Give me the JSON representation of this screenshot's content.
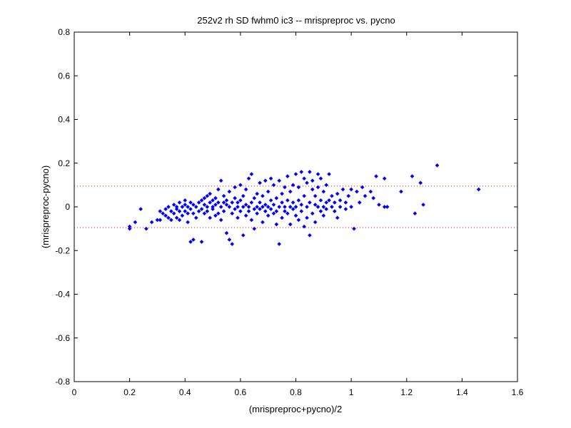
{
  "chart_data": {
    "type": "scatter",
    "title": "252v2 rh SD fwhm0 ic3 -- mrispreproc vs. pycno",
    "xlabel": "(mrispreproc+pycno)/2",
    "ylabel": "(mrispreproc-pycno)",
    "xlim": [
      0,
      1.6
    ],
    "ylim": [
      -0.8,
      0.8
    ],
    "xticks": [
      "0",
      "0.2",
      "0.4",
      "0.6",
      "0.8",
      "1",
      "1.2",
      "1.4",
      "1.6"
    ],
    "xtick_values": [
      0,
      0.2,
      0.4,
      0.6,
      0.8,
      1.0,
      1.2,
      1.4,
      1.6
    ],
    "yticks": [
      "-0.8",
      "-0.6",
      "-0.4",
      "-0.2",
      "0",
      "0.2",
      "0.4",
      "0.6",
      "0.8"
    ],
    "ytick_values": [
      -0.8,
      -0.6,
      -0.4,
      -0.2,
      0,
      0.2,
      0.4,
      0.6,
      0.8
    ],
    "grid": false,
    "marker_color": "#0000ff",
    "reference_line_color": "#ff0000",
    "reference_lines": [
      0.095,
      -0.095
    ],
    "points": [
      [
        0.2,
        -0.09
      ],
      [
        0.2,
        -0.1
      ],
      [
        0.22,
        -0.07
      ],
      [
        0.24,
        -0.01
      ],
      [
        0.26,
        -0.1
      ],
      [
        0.28,
        -0.07
      ],
      [
        0.3,
        -0.06
      ],
      [
        0.31,
        -0.02
      ],
      [
        0.31,
        -0.06
      ],
      [
        0.32,
        -0.03
      ],
      [
        0.33,
        -0.04
      ],
      [
        0.33,
        -0.01
      ],
      [
        0.34,
        0.0
      ],
      [
        0.34,
        -0.05
      ],
      [
        0.35,
        -0.02
      ],
      [
        0.35,
        -0.06
      ],
      [
        0.36,
        0.01
      ],
      [
        0.36,
        -0.03
      ],
      [
        0.37,
        -0.01
      ],
      [
        0.37,
        -0.05
      ],
      [
        0.37,
        0.0
      ],
      [
        0.38,
        0.02
      ],
      [
        0.38,
        -0.02
      ],
      [
        0.38,
        -0.06
      ],
      [
        0.39,
        0.0
      ],
      [
        0.39,
        -0.04
      ],
      [
        0.4,
        0.01
      ],
      [
        0.4,
        -0.02
      ],
      [
        0.4,
        0.03
      ],
      [
        0.41,
        -0.03
      ],
      [
        0.41,
        0.0
      ],
      [
        0.41,
        -0.07
      ],
      [
        0.42,
        0.02
      ],
      [
        0.42,
        -0.01
      ],
      [
        0.42,
        -0.16
      ],
      [
        0.43,
        -0.15
      ],
      [
        0.43,
        -0.03
      ],
      [
        0.43,
        0.01
      ],
      [
        0.44,
        0.0
      ],
      [
        0.44,
        -0.05
      ],
      [
        0.45,
        0.02
      ],
      [
        0.45,
        -0.02
      ],
      [
        0.46,
        -0.16
      ],
      [
        0.46,
        0.03
      ],
      [
        0.46,
        -0.01
      ],
      [
        0.47,
        0.01
      ],
      [
        0.47,
        0.04
      ],
      [
        0.47,
        -0.03
      ],
      [
        0.48,
        0.0
      ],
      [
        0.48,
        0.05
      ],
      [
        0.48,
        -0.02
      ],
      [
        0.49,
        0.02
      ],
      [
        0.49,
        -0.05
      ],
      [
        0.49,
        0.06
      ],
      [
        0.5,
        0.0
      ],
      [
        0.5,
        0.03
      ],
      [
        0.5,
        -0.01
      ],
      [
        0.51,
        0.04
      ],
      [
        0.51,
        -0.04
      ],
      [
        0.51,
        0.01
      ],
      [
        0.52,
        0.02
      ],
      [
        0.52,
        0.08
      ],
      [
        0.52,
        -0.03
      ],
      [
        0.53,
        0.12
      ],
      [
        0.53,
        0.0
      ],
      [
        0.53,
        -0.06
      ],
      [
        0.54,
        0.05
      ],
      [
        0.54,
        0.02
      ],
      [
        0.54,
        -0.02
      ],
      [
        0.55,
        0.01
      ],
      [
        0.55,
        -0.12
      ],
      [
        0.55,
        0.03
      ],
      [
        0.56,
        0.0
      ],
      [
        0.56,
        -0.15
      ],
      [
        0.56,
        0.07
      ],
      [
        0.57,
        -0.17
      ],
      [
        0.57,
        0.02
      ],
      [
        0.57,
        -0.03
      ],
      [
        0.58,
        0.04
      ],
      [
        0.58,
        -0.01
      ],
      [
        0.58,
        0.09
      ],
      [
        0.59,
        0.0
      ],
      [
        0.59,
        -0.05
      ],
      [
        0.59,
        0.02
      ],
      [
        0.6,
        0.03
      ],
      [
        0.6,
        -0.02
      ],
      [
        0.6,
        0.1
      ],
      [
        0.61,
        0.0
      ],
      [
        0.61,
        -0.13
      ],
      [
        0.61,
        0.05
      ],
      [
        0.62,
        0.01
      ],
      [
        0.62,
        -0.04
      ],
      [
        0.62,
        0.08
      ],
      [
        0.63,
        0.0
      ],
      [
        0.63,
        -0.02
      ],
      [
        0.63,
        0.13
      ],
      [
        0.64,
        0.02
      ],
      [
        0.64,
        -0.06
      ],
      [
        0.64,
        0.15
      ],
      [
        0.65,
        -0.01
      ],
      [
        0.65,
        0.04
      ],
      [
        0.65,
        -0.1
      ],
      [
        0.66,
        0.0
      ],
      [
        0.66,
        0.06
      ],
      [
        0.66,
        -0.03
      ],
      [
        0.67,
        0.02
      ],
      [
        0.67,
        0.11
      ],
      [
        0.67,
        -0.01
      ],
      [
        0.68,
        0.0
      ],
      [
        0.68,
        0.05
      ],
      [
        0.68,
        -0.07
      ],
      [
        0.69,
        -0.02
      ],
      [
        0.69,
        0.01
      ],
      [
        0.69,
        0.12
      ],
      [
        0.7,
        0.0
      ],
      [
        0.7,
        -0.04
      ],
      [
        0.7,
        0.07
      ],
      [
        0.71,
        0.13
      ],
      [
        0.71,
        -0.01
      ],
      [
        0.71,
        0.03
      ],
      [
        0.72,
        -0.03
      ],
      [
        0.72,
        0.01
      ],
      [
        0.72,
        0.1
      ],
      [
        0.73,
        -0.02
      ],
      [
        0.73,
        0.04
      ],
      [
        0.73,
        -0.08
      ],
      [
        0.74,
        0.0
      ],
      [
        0.74,
        0.12
      ],
      [
        0.74,
        -0.17
      ],
      [
        0.75,
        0.02
      ],
      [
        0.75,
        -0.05
      ],
      [
        0.75,
        0.06
      ],
      [
        0.76,
        -0.02
      ],
      [
        0.76,
        0.09
      ],
      [
        0.76,
        0.0
      ],
      [
        0.77,
        0.14
      ],
      [
        0.77,
        -0.03
      ],
      [
        0.77,
        0.03
      ],
      [
        0.78,
        0.0
      ],
      [
        0.78,
        -0.08
      ],
      [
        0.78,
        0.07
      ],
      [
        0.79,
        0.02
      ],
      [
        0.79,
        -0.01
      ],
      [
        0.79,
        0.1
      ],
      [
        0.8,
        0.0
      ],
      [
        0.8,
        0.15
      ],
      [
        0.8,
        -0.04
      ],
      [
        0.81,
        0.03
      ],
      [
        0.81,
        -0.06
      ],
      [
        0.81,
        0.09
      ],
      [
        0.82,
        0.16
      ],
      [
        0.82,
        0.01
      ],
      [
        0.82,
        -0.02
      ],
      [
        0.83,
        0.13
      ],
      [
        0.83,
        -0.09
      ],
      [
        0.83,
        0.05
      ],
      [
        0.84,
        0.0
      ],
      [
        0.84,
        0.11
      ],
      [
        0.84,
        -0.05
      ],
      [
        0.85,
        0.16
      ],
      [
        0.85,
        -0.13
      ],
      [
        0.85,
        0.02
      ],
      [
        0.86,
        0.08
      ],
      [
        0.86,
        -0.03
      ],
      [
        0.86,
        0.12
      ],
      [
        0.87,
        0.01
      ],
      [
        0.87,
        -0.07
      ],
      [
        0.87,
        0.05
      ],
      [
        0.88,
        0.15
      ],
      [
        0.88,
        0.0
      ],
      [
        0.88,
        0.09
      ],
      [
        0.89,
        -0.02
      ],
      [
        0.89,
        0.03
      ],
      [
        0.89,
        0.13
      ],
      [
        0.9,
        0.0
      ],
      [
        0.9,
        -0.04
      ],
      [
        0.9,
        0.07
      ],
      [
        0.91,
        0.02
      ],
      [
        0.91,
        0.1
      ],
      [
        0.91,
        -0.01
      ],
      [
        0.92,
        0.15
      ],
      [
        0.92,
        0.03
      ],
      [
        0.93,
        0.0
      ],
      [
        0.93,
        0.05
      ],
      [
        0.94,
        -0.02
      ],
      [
        0.94,
        0.02
      ],
      [
        0.95,
        0.06
      ],
      [
        0.95,
        -0.05
      ],
      [
        0.96,
        0.03
      ],
      [
        0.96,
        0.0
      ],
      [
        0.97,
        0.08
      ],
      [
        0.98,
        0.02
      ],
      [
        0.98,
        -0.01
      ],
      [
        0.99,
        0.05
      ],
      [
        1.0,
        0.08
      ],
      [
        1.0,
        0.0
      ],
      [
        1.01,
        -0.1
      ],
      [
        1.02,
        0.07
      ],
      [
        1.03,
        0.02
      ],
      [
        1.04,
        0.09
      ],
      [
        1.05,
        0.05
      ],
      [
        1.07,
        0.07
      ],
      [
        1.08,
        0.04
      ],
      [
        1.09,
        0.14
      ],
      [
        1.1,
        0.01
      ],
      [
        1.12,
        0.13
      ],
      [
        1.12,
        0.0
      ],
      [
        1.13,
        0.0
      ],
      [
        1.18,
        0.07
      ],
      [
        1.22,
        0.14
      ],
      [
        1.23,
        -0.03
      ],
      [
        1.25,
        0.11
      ],
      [
        1.26,
        0.01
      ],
      [
        1.31,
        0.19
      ],
      [
        1.46,
        0.08
      ]
    ]
  }
}
